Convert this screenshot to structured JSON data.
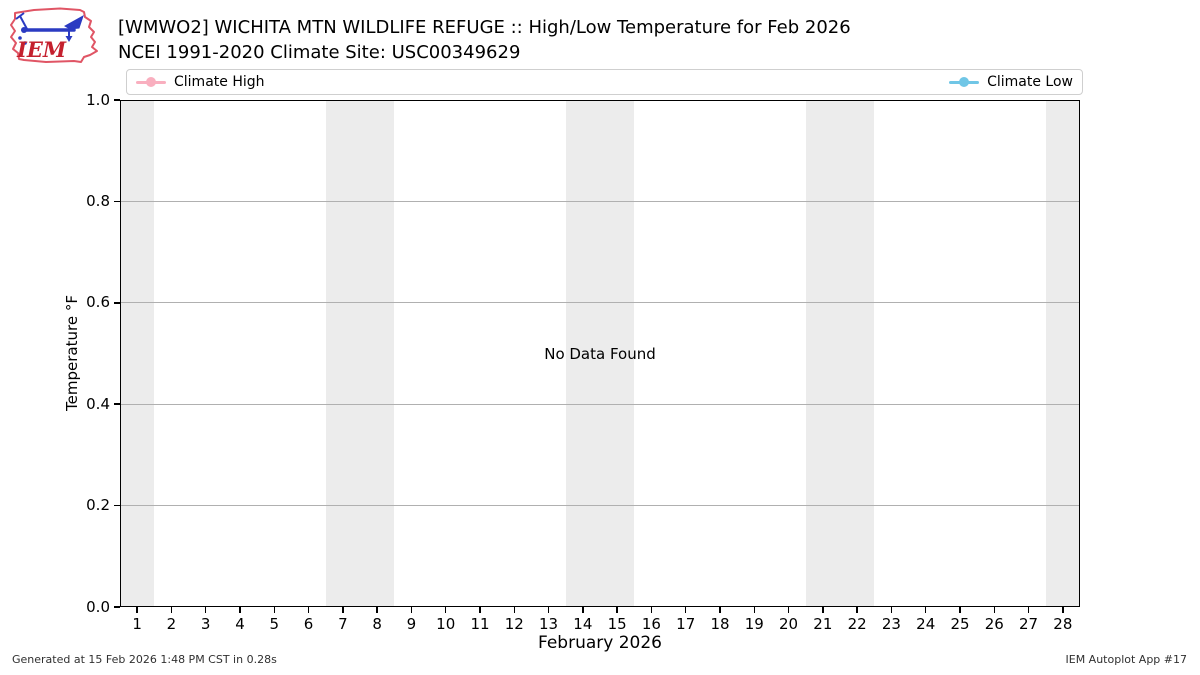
{
  "header": {
    "logo_text": "IEM",
    "title": "[WMWO2] WICHITA MTN WILDLIFE REFUGE :: High/Low Temperature for Feb 2026",
    "subtitle": "NCEI 1991-2020 Climate Site: USC00349629"
  },
  "legend": {
    "items": [
      {
        "label": "Climate High",
        "color": "#F9AFBF"
      },
      {
        "label": "Climate Low",
        "color": "#70C6E6"
      }
    ]
  },
  "chart_data": {
    "type": "line",
    "title": "[WMWO2] WICHITA MTN WILDLIFE REFUGE :: High/Low Temperature for Feb 2026",
    "subtitle": "NCEI 1991-2020 Climate Site: USC00349629",
    "xlabel": "February 2026",
    "ylabel": "Temperature °F",
    "xlim": [
      0.5,
      28.5
    ],
    "ylim": [
      0.0,
      1.0
    ],
    "xticks": [
      1,
      2,
      3,
      4,
      5,
      6,
      7,
      8,
      9,
      10,
      11,
      12,
      13,
      14,
      15,
      16,
      17,
      18,
      19,
      20,
      21,
      22,
      23,
      24,
      25,
      26,
      27,
      28
    ],
    "yticks": [
      0.0,
      0.2,
      0.4,
      0.6,
      0.8,
      1.0
    ],
    "ytick_labels": [
      "0.0",
      "0.2",
      "0.4",
      "0.6",
      "0.8",
      "1.0"
    ],
    "grid": "horizontal",
    "grid_color": "#b0b0b0",
    "legend_position": "top",
    "weekend_shading": {
      "color": "#ECECEC",
      "bands": [
        [
          0.5,
          1.5
        ],
        [
          6.5,
          8.5
        ],
        [
          13.5,
          15.5
        ],
        [
          20.5,
          22.5
        ],
        [
          27.5,
          28.5
        ]
      ]
    },
    "series": [
      {
        "name": "Climate High",
        "color": "#F9AFBF",
        "marker": "circle",
        "x": [],
        "y": []
      },
      {
        "name": "Climate Low",
        "color": "#70C6E6",
        "marker": "circle",
        "x": [],
        "y": []
      }
    ],
    "annotations": [
      {
        "text": "No Data Found",
        "x": 14.5,
        "y": 0.5
      }
    ],
    "no_data": true
  },
  "footer": {
    "generated": "Generated at 15 Feb 2026 1:48 PM CST in 0.28s",
    "app": "IEM Autoplot App #17"
  }
}
